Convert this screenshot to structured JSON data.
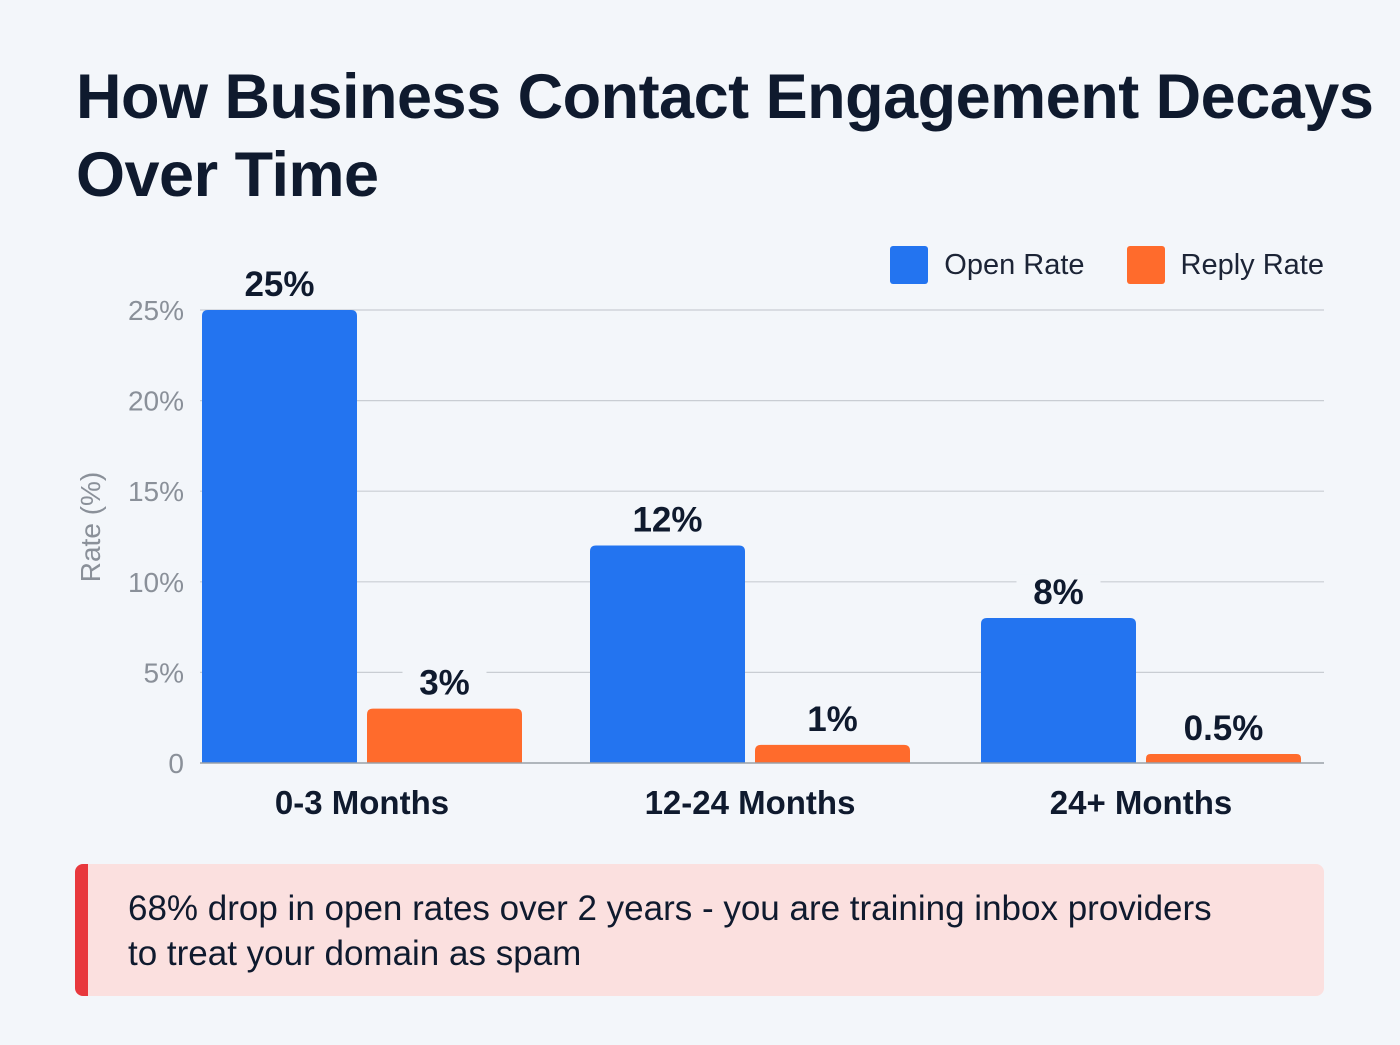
{
  "chart_data": {
    "type": "bar",
    "title": "How Business Contact Engagement Decays Over Time",
    "xlabel": "",
    "ylabel": "Rate (%)",
    "ylim": [
      0,
      25
    ],
    "yticks": [
      0,
      5,
      10,
      15,
      20,
      25
    ],
    "ytick_labels": [
      "0",
      "5%",
      "10%",
      "15%",
      "20%",
      "25%"
    ],
    "grid": true,
    "legend_position": "top-right",
    "categories": [
      "0-3 Months",
      "12-24 Months",
      "24+ Months"
    ],
    "series": [
      {
        "name": "Open Rate",
        "color": "#2374F0",
        "values": [
          25,
          12,
          8
        ],
        "labels": [
          "25%",
          "12%",
          "8%"
        ]
      },
      {
        "name": "Reply Rate",
        "color": "#FF6B2C",
        "values": [
          3,
          1,
          0.5
        ],
        "labels": [
          "3%",
          "1%",
          "0.5%"
        ]
      }
    ]
  },
  "callout": {
    "text": "68% drop in open rates over 2 years - you are training inbox providers to treat your domain as spam",
    "accent": "#E8383D"
  }
}
